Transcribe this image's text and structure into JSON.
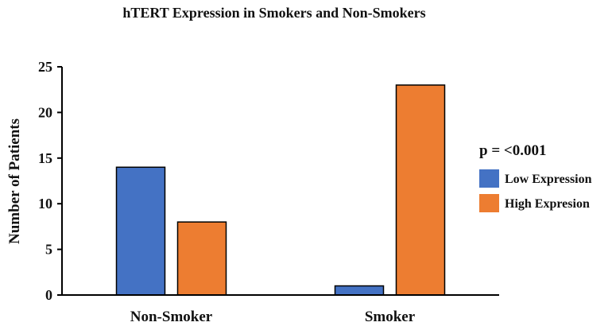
{
  "chart_data": {
    "type": "bar",
    "title": "hTERT Expression in Smokers and Non-Smokers",
    "xlabel": "",
    "ylabel": "Number of Patients",
    "categories": [
      "Non-Smoker",
      "Smoker"
    ],
    "series": [
      {
        "name": "Low Expression",
        "values": [
          14,
          1
        ],
        "color": "#4472C4"
      },
      {
        "name": "High Expresion",
        "values": [
          8,
          23
        ],
        "color": "#ED7D31"
      }
    ],
    "ylim": [
      0,
      25
    ],
    "yticks": [
      "0",
      "5",
      "10",
      "15",
      "20",
      "25"
    ],
    "grid": false,
    "legend_position": "right",
    "annotation": "p = <0.001"
  }
}
